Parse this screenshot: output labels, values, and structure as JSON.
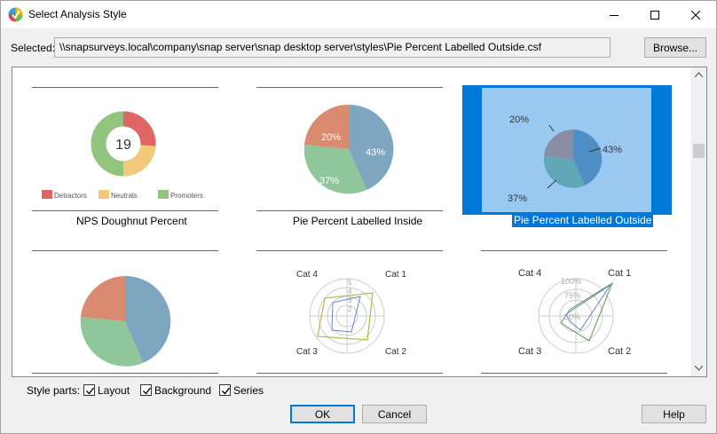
{
  "window": {
    "title": "Select Analysis Style"
  },
  "selected": {
    "label": "Selected:",
    "path": "\\\\snapsurveys.local\\company\\snap server\\snap desktop server\\styles\\Pie Percent Labelled Outside.csf"
  },
  "browse_label": "Browse...",
  "styles": [
    {
      "name": "NPS Doughnut Percent",
      "center_value": "19",
      "legend": [
        "Detractors",
        "Neutrals",
        "Promoters"
      ]
    },
    {
      "name": "Pie Percent Labelled Inside",
      "labels": [
        "43%",
        "37%",
        "20%"
      ]
    },
    {
      "name": "Pie Percent Labelled Outside",
      "labels": [
        "20%",
        "43%",
        "37%"
      ],
      "selected": true
    },
    {
      "name": ""
    },
    {
      "name": "",
      "categories": [
        "Cat 4",
        "Cat 1",
        "Cat 3",
        "Cat 2"
      ],
      "ticks": [
        "5",
        "4",
        "3",
        "2"
      ]
    },
    {
      "name": "",
      "categories": [
        "Cat 4",
        "Cat 1",
        "Cat 3",
        "Cat 2"
      ],
      "ticks": [
        "100%",
        "75%",
        "50%"
      ]
    }
  ],
  "style_parts": {
    "label": "Style parts:",
    "layout": "Layout",
    "background": "Background",
    "series": "Series"
  },
  "buttons": {
    "ok": "OK",
    "cancel": "Cancel",
    "help": "Help"
  },
  "colors": {
    "detractors": "#e06666",
    "neutrals": "#f3c97b",
    "promoters": "#93c47d",
    "pie_blue": "#7ea6c1",
    "pie_green": "#8fc79b",
    "pie_red": "#d98a6f",
    "selection": "#0078d7"
  }
}
